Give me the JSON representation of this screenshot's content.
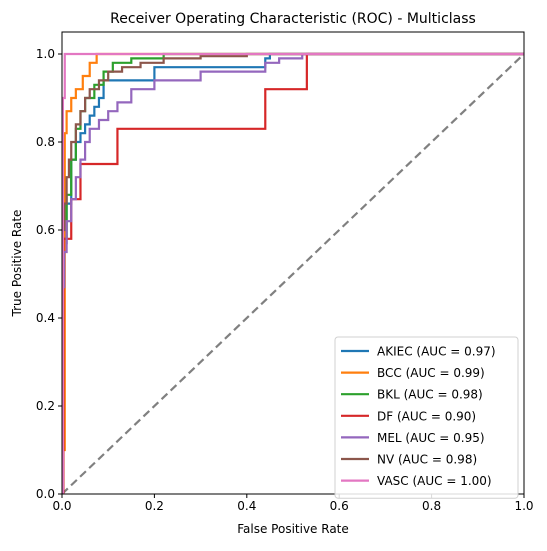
{
  "chart_data": {
    "type": "line",
    "title": "Receiver Operating Characteristic (ROC) - Multiclass",
    "xlabel": "False Positive Rate",
    "ylabel": "True Positive Rate",
    "xlim": [
      0.0,
      1.0
    ],
    "ylim": [
      0.0,
      1.05
    ],
    "xticks": [
      "0.0",
      "0.2",
      "0.4",
      "0.6",
      "0.8",
      "1.0"
    ],
    "yticks": [
      "0.0",
      "0.2",
      "0.4",
      "0.6",
      "0.8",
      "1.0"
    ],
    "grid": false,
    "legend_position": "lower-right",
    "reference_line": {
      "x": [
        0,
        1
      ],
      "y": [
        0,
        1
      ],
      "color": "#808080",
      "style": "dashed"
    },
    "series": [
      {
        "name": "AKIEC (AUC = 0.97)",
        "color": "#1f77b4",
        "x": [
          0,
          0.002,
          0.002,
          0.01,
          0.01,
          0.02,
          0.02,
          0.03,
          0.03,
          0.04,
          0.04,
          0.05,
          0.05,
          0.06,
          0.06,
          0.07,
          0.07,
          0.08,
          0.08,
          0.09,
          0.09,
          0.2,
          0.2,
          0.44,
          0.44,
          0.45,
          0.45,
          1.0
        ],
        "y": [
          0,
          0,
          0.57,
          0.57,
          0.66,
          0.66,
          0.76,
          0.76,
          0.8,
          0.8,
          0.82,
          0.82,
          0.84,
          0.84,
          0.86,
          0.86,
          0.88,
          0.88,
          0.9,
          0.9,
          0.94,
          0.94,
          0.97,
          0.97,
          0.99,
          0.99,
          1.0,
          1.0
        ]
      },
      {
        "name": "BCC (AUC = 0.99)",
        "color": "#ff7f0e",
        "x": [
          0,
          0.002,
          0.002,
          0.006,
          0.006,
          0.01,
          0.01,
          0.02,
          0.02,
          0.03,
          0.03,
          0.045,
          0.045,
          0.06,
          0.06,
          0.075,
          0.075,
          1.0
        ],
        "y": [
          0,
          0,
          0.1,
          0.1,
          0.82,
          0.82,
          0.87,
          0.87,
          0.9,
          0.9,
          0.92,
          0.92,
          0.95,
          0.95,
          0.98,
          0.98,
          1.0,
          1.0
        ]
      },
      {
        "name": "BKL (AUC = 0.98)",
        "color": "#2ca02c",
        "x": [
          0,
          0.002,
          0.002,
          0.01,
          0.01,
          0.02,
          0.02,
          0.03,
          0.03,
          0.04,
          0.04,
          0.05,
          0.05,
          0.07,
          0.07,
          0.09,
          0.09,
          0.11,
          0.11,
          0.15,
          0.15,
          0.22,
          0.22,
          1.0
        ],
        "y": [
          0,
          0,
          0.58,
          0.58,
          0.68,
          0.68,
          0.76,
          0.76,
          0.83,
          0.83,
          0.87,
          0.87,
          0.9,
          0.9,
          0.93,
          0.93,
          0.96,
          0.96,
          0.98,
          0.98,
          0.99,
          0.99,
          1.0,
          1.0
        ]
      },
      {
        "name": "DF (AUC = 0.90)",
        "color": "#d62728",
        "x": [
          0,
          0.003,
          0.003,
          0.02,
          0.02,
          0.04,
          0.04,
          0.06,
          0.06,
          0.12,
          0.12,
          0.44,
          0.44,
          0.53,
          0.53,
          1.0
        ],
        "y": [
          0,
          0,
          0.58,
          0.58,
          0.67,
          0.67,
          0.75,
          0.75,
          0.75,
          0.75,
          0.83,
          0.83,
          0.92,
          0.92,
          1.0,
          1.0
        ]
      },
      {
        "name": "MEL (AUC = 0.95)",
        "color": "#9467bd",
        "x": [
          0,
          0.002,
          0.002,
          0.005,
          0.005,
          0.01,
          0.01,
          0.02,
          0.02,
          0.03,
          0.03,
          0.04,
          0.04,
          0.05,
          0.05,
          0.06,
          0.06,
          0.08,
          0.08,
          0.1,
          0.1,
          0.12,
          0.12,
          0.15,
          0.15,
          0.2,
          0.2,
          0.3,
          0.3,
          0.44,
          0.44,
          0.47,
          0.47,
          0.52,
          0.52,
          0.55,
          0.55,
          1.0
        ],
        "y": [
          0,
          0,
          0.47,
          0.47,
          0.55,
          0.55,
          0.62,
          0.62,
          0.67,
          0.67,
          0.72,
          0.72,
          0.76,
          0.76,
          0.8,
          0.8,
          0.83,
          0.83,
          0.85,
          0.85,
          0.87,
          0.87,
          0.89,
          0.89,
          0.92,
          0.92,
          0.94,
          0.94,
          0.96,
          0.96,
          0.98,
          0.98,
          0.99,
          0.99,
          1.0,
          1.0,
          1.0,
          1.0
        ]
      },
      {
        "name": "NV (AUC = 0.98)",
        "color": "#8c564b",
        "x": [
          0,
          0.002,
          0.002,
          0.005,
          0.005,
          0.01,
          0.01,
          0.015,
          0.015,
          0.02,
          0.02,
          0.03,
          0.03,
          0.04,
          0.04,
          0.05,
          0.05,
          0.06,
          0.06,
          0.08,
          0.08,
          0.1,
          0.1,
          0.13,
          0.13,
          0.17,
          0.17,
          0.22,
          0.22,
          0.3,
          0.3,
          0.4,
          0.4,
          1.0
        ],
        "y": [
          0,
          0,
          0.6,
          0.6,
          0.66,
          0.66,
          0.72,
          0.72,
          0.76,
          0.76,
          0.8,
          0.8,
          0.84,
          0.84,
          0.87,
          0.87,
          0.9,
          0.9,
          0.92,
          0.92,
          0.94,
          0.94,
          0.96,
          0.96,
          0.97,
          0.97,
          0.98,
          0.98,
          0.99,
          0.99,
          0.995,
          0.995,
          1.0,
          1.0
        ]
      },
      {
        "name": "VASC (AUC = 1.00)",
        "color": "#e377c2",
        "x": [
          0,
          0.002,
          0.002,
          0.006,
          0.006,
          1.0
        ],
        "y": [
          0,
          0,
          0.9,
          0.9,
          1.0,
          1.0
        ]
      }
    ]
  }
}
